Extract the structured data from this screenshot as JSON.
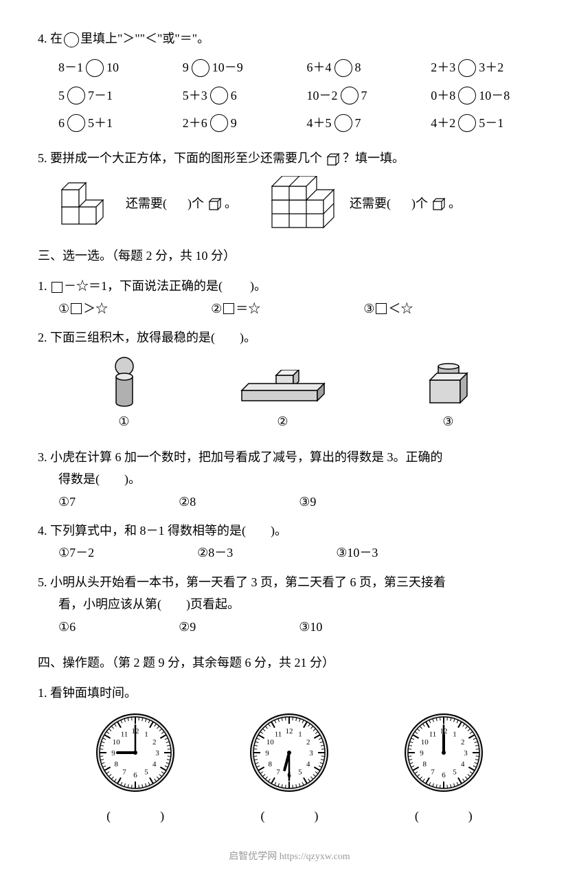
{
  "q4": {
    "header": "4. 在",
    "header2": "里填上\"＞\"\"＜\"或\"＝\"。",
    "rows": [
      [
        {
          "left": "8－1",
          "right": "10"
        },
        {
          "left": "9",
          "right": "10－9"
        },
        {
          "left": "6＋4",
          "right": "8"
        },
        {
          "left": "2＋3",
          "right": "3＋2"
        }
      ],
      [
        {
          "left": "5",
          "right": "7－1"
        },
        {
          "left": "5＋3",
          "right": "6"
        },
        {
          "left": "10－2",
          "right": "7"
        },
        {
          "left": "0＋8",
          "right": "10－8"
        }
      ],
      [
        {
          "left": "6",
          "right": "5＋1"
        },
        {
          "left": "2＋6",
          "right": "9"
        },
        {
          "left": "4＋5",
          "right": "7"
        },
        {
          "left": "4＋2",
          "right": "5－1"
        }
      ]
    ]
  },
  "q5": {
    "header": "5. 要拼成一个大正方体，下面的图形至少还需要几个",
    "header2": "？填一填。",
    "part1_pre": "还需要(",
    "part1_post": ")个",
    "part2_pre": "还需要(",
    "part2_post": ")个",
    "period": "。"
  },
  "sec3": {
    "header": "三、选一选。",
    "scoring": "（每题 2 分，共 10 分）"
  },
  "s3q1": {
    "text_pre": "1. ",
    "text_mid": "－☆＝1，下面说法正确的是(",
    "text_post": ")。",
    "opts": [
      "＞☆",
      "＝☆",
      "＜☆"
    ]
  },
  "s3q2": {
    "text": "2. 下面三组积木，放得最稳的是(　　)。"
  },
  "s3q3": {
    "line1": "3. 小虎在计算 6 加一个数时，把加号看成了减号，算出的得数是 3。正确的",
    "line2": "得数是(　　)。",
    "opts": [
      "7",
      "8",
      "9"
    ]
  },
  "s3q4": {
    "text": "4. 下列算式中，和 8－1 得数相等的是(　　)。",
    "opts": [
      "7－2",
      "8－3",
      "10－3"
    ]
  },
  "s3q5": {
    "line1": "5. 小明从头开始看一本书，第一天看了 3 页，第二天看了 6 页，第三天接着",
    "line2": "看，小明应该从第(　　)页看起。",
    "opts": [
      "6",
      "9",
      "10"
    ]
  },
  "sec4": {
    "header": "四、操作题。",
    "scoring": "（第 2 题 9 分，其余每题 6 分，共 21 分）"
  },
  "s4q1": {
    "text": "1. 看钟面填时间。",
    "answer_blank": "(　　　　)",
    "clocks": [
      {
        "hour": 9,
        "minute": 0
      },
      {
        "hour": 6,
        "minute": 30
      },
      {
        "hour": 12,
        "minute": 0
      }
    ]
  },
  "footer": "启智优学网 https://qzyxw.com",
  "circled_nums": [
    "①",
    "②",
    "③"
  ],
  "colors": {
    "ink": "#000000",
    "bg": "#ffffff",
    "footer": "#999999",
    "shade": "#b0b0b0",
    "shade_dark": "#707070"
  },
  "styling": {
    "body_fontsize": 18,
    "body_width": 843,
    "body_height": 1122,
    "circle_diameter": 26,
    "circle_border": 1.5,
    "clock_diameter": 120,
    "tick_major_len": 10,
    "tick_minor_len": 5
  }
}
